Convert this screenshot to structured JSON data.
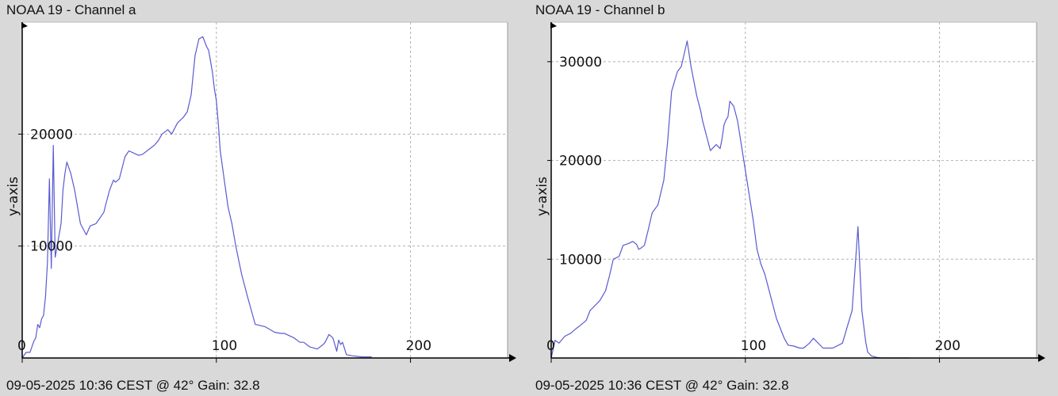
{
  "chart_data": [
    {
      "type": "line",
      "title": "NOAA 19 - Channel a",
      "footer": "09-05-2025 10:36 CEST @ 42° Gain: 32.8",
      "ylabel": "y-axis",
      "xlabel": "",
      "xlim": [
        0,
        250
      ],
      "ylim": [
        0,
        30000
      ],
      "xticks": [
        0,
        100,
        200
      ],
      "yticks": [
        10000,
        20000
      ],
      "grid": true,
      "line_color": "#5a5ad2",
      "series": [
        {
          "x": [
            0,
            2,
            4,
            6,
            7,
            8,
            9,
            10,
            11,
            12,
            13,
            14,
            15,
            16,
            17,
            18,
            20,
            21,
            22,
            23,
            25,
            27,
            30,
            33,
            35,
            38,
            40,
            42,
            43,
            45,
            47,
            48,
            50,
            53,
            55,
            60,
            62,
            65,
            68,
            70,
            72,
            75,
            77,
            80,
            83,
            85,
            87,
            89,
            91,
            93,
            95,
            96,
            97,
            98,
            99,
            100,
            101,
            102,
            104,
            106,
            108,
            110,
            113,
            116,
            120,
            125,
            130,
            133,
            135,
            140,
            143,
            145,
            148,
            150,
            152,
            155,
            156,
            158,
            160,
            162,
            163,
            164,
            165,
            167,
            170,
            175,
            180
          ],
          "y": [
            0,
            500,
            500,
            1500,
            1800,
            3000,
            2700,
            3500,
            3800,
            5500,
            8500,
            16000,
            8000,
            19000,
            9000,
            10000,
            12000,
            15000,
            16500,
            17500,
            16500,
            15000,
            12000,
            11000,
            11800,
            12000,
            12500,
            13000,
            13700,
            15000,
            15900,
            15700,
            16000,
            18000,
            18500,
            18100,
            18200,
            18600,
            19000,
            19400,
            20000,
            20400,
            20000,
            21000,
            21500,
            22000,
            23500,
            27000,
            28500,
            28700,
            27800,
            27500,
            26500,
            25500,
            24000,
            23000,
            21000,
            18500,
            16000,
            13500,
            12000,
            10000,
            7500,
            5500,
            3000,
            2800,
            2300,
            2200,
            2200,
            1800,
            1400,
            1400,
            1000,
            900,
            800,
            1200,
            1400,
            2100,
            1800,
            600,
            1600,
            1200,
            1400,
            300,
            200,
            100,
            100
          ]
        }
      ]
    },
    {
      "type": "line",
      "title": "NOAA 19 - Channel b",
      "footer": "09-05-2025 10:36 CEST @ 42° Gain: 32.8",
      "ylabel": "y-axis",
      "xlabel": "",
      "xlim": [
        0,
        250
      ],
      "ylim": [
        0,
        34000
      ],
      "xticks": [
        0,
        100,
        200
      ],
      "yticks": [
        10000,
        20000,
        30000
      ],
      "grid": true,
      "line_color": "#5a5ad2",
      "series": [
        {
          "x": [
            0,
            2,
            4,
            7,
            10,
            13,
            15,
            18,
            20,
            22,
            25,
            28,
            30,
            32,
            35,
            37,
            40,
            42,
            44,
            45,
            46,
            48,
            50,
            52,
            55,
            58,
            60,
            62,
            65,
            67,
            70,
            72,
            75,
            77,
            78,
            80,
            82,
            85,
            87,
            88,
            89,
            90,
            91,
            92,
            94,
            96,
            98,
            100,
            102,
            104,
            106,
            108,
            110,
            112,
            114,
            116,
            118,
            120,
            122,
            125,
            128,
            130,
            133,
            135,
            140,
            145,
            150,
            153,
            155,
            158,
            160,
            162,
            163,
            164,
            165,
            166,
            167,
            168,
            170,
            172,
            174,
            176,
            178,
            180,
            182,
            185
          ],
          "y": [
            0,
            1800,
            1500,
            2200,
            2500,
            3000,
            3300,
            3800,
            4800,
            5200,
            5800,
            6800,
            8300,
            10000,
            10300,
            11400,
            11600,
            11800,
            11500,
            11000,
            11100,
            11400,
            13000,
            14700,
            15500,
            18000,
            22000,
            27000,
            29000,
            29500,
            32100,
            29500,
            26500,
            25000,
            24000,
            22500,
            21000,
            21600,
            21200,
            22200,
            23600,
            24100,
            24400,
            26000,
            25500,
            24000,
            21500,
            19000,
            16500,
            14000,
            11000,
            9500,
            8500,
            7000,
            5500,
            4000,
            3000,
            2000,
            1300,
            1200,
            1000,
            1000,
            1500,
            2000,
            1000,
            1000,
            1500,
            3500,
            4800,
            13300,
            4800,
            1600,
            600,
            400,
            200,
            150,
            100,
            50,
            0,
            0,
            0,
            0,
            0,
            0,
            0,
            0
          ]
        }
      ]
    }
  ]
}
